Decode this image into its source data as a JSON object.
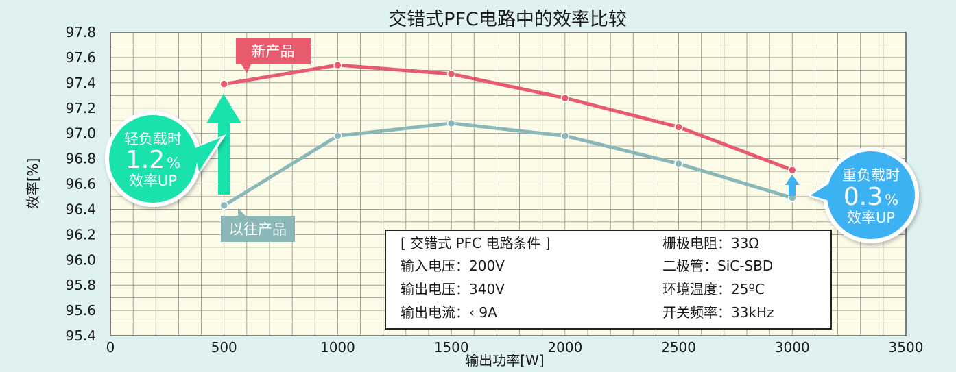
{
  "chart_data": {
    "type": "line",
    "title": "交错式PFC电路中的效率比较",
    "xlabel": "输出功率[W]",
    "ylabel": "效率[%]",
    "xlim": [
      0,
      3500
    ],
    "ylim": [
      95.4,
      97.8
    ],
    "x_ticks": [
      "0",
      "500",
      "1000",
      "1500",
      "2000",
      "2500",
      "3000",
      "3500"
    ],
    "y_ticks": [
      "97.8",
      "97.6",
      "97.4",
      "97.2",
      "97.0",
      "96.8",
      "96.6",
      "96.4",
      "96.2",
      "96.0",
      "95.8",
      "95.6",
      "95.4"
    ],
    "grid": true,
    "series": [
      {
        "name": "新产品",
        "color": "#e85a6e",
        "x": [
          500,
          1000,
          1500,
          2000,
          2500,
          3000
        ],
        "y": [
          97.39,
          97.54,
          97.47,
          97.28,
          97.05,
          96.71
        ]
      },
      {
        "name": "以往产品",
        "color": "#8ab8b9",
        "x": [
          500,
          1000,
          1500,
          2000,
          2500,
          3000
        ],
        "y": [
          96.43,
          96.98,
          97.08,
          96.98,
          96.76,
          96.49
        ]
      }
    ]
  },
  "annotations": {
    "light_load": {
      "line1": "轻负载时",
      "value": "1.2",
      "unit": "%",
      "line3": "效率UP",
      "color": "#19e2ad"
    },
    "heavy_load": {
      "line1": "重负载时",
      "value": "0.3",
      "unit": "%",
      "line3": "效率UP",
      "color": "#3db2f2"
    }
  },
  "conditions": {
    "header": "[ 交错式 PFC 电路条件 ]",
    "left": [
      "输入电压：200V",
      "输出电压：340V",
      "输出电流：‹  9A"
    ],
    "right": [
      "栅极电阻：33Ω",
      "二极管：SiC-SBD",
      "环境温度：25ºC",
      "开关频率：33kHz"
    ]
  }
}
